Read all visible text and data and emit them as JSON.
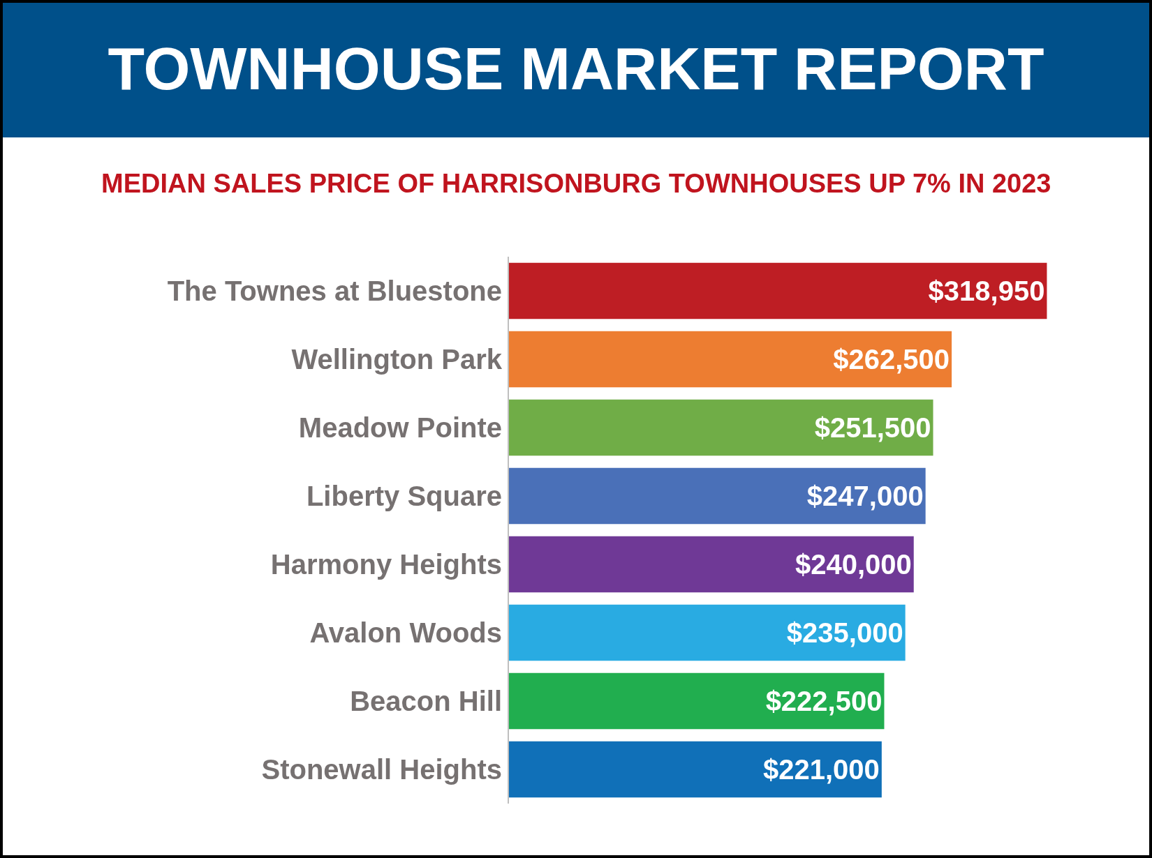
{
  "chart_data": {
    "type": "bar",
    "orientation": "horizontal",
    "title": "TOWNHOUSE MARKET REPORT",
    "subtitle": "MEDIAN SALES PRICE OF HARRISONBURG TOWNHOUSES UP 7% IN 2023",
    "categories": [
      "The Townes at Bluestone",
      "Wellington Park",
      "Meadow Pointe",
      "Liberty Square",
      "Harmony Heights",
      "Avalon Woods",
      "Beacon Hill",
      "Stonewall Heights"
    ],
    "values": [
      318950,
      262500,
      251500,
      247000,
      240000,
      235000,
      222500,
      221000
    ],
    "value_labels": [
      "$318,950",
      "$262,500",
      "$251,500",
      "$247,000",
      "$240,000",
      "$235,000",
      "$222,500",
      "$221,000"
    ],
    "colors": [
      "#be1e24",
      "#ed7d31",
      "#70ad47",
      "#4a70b8",
      "#6f3996",
      "#29abe2",
      "#21ae4f",
      "#1070b8"
    ],
    "legend": false
  }
}
